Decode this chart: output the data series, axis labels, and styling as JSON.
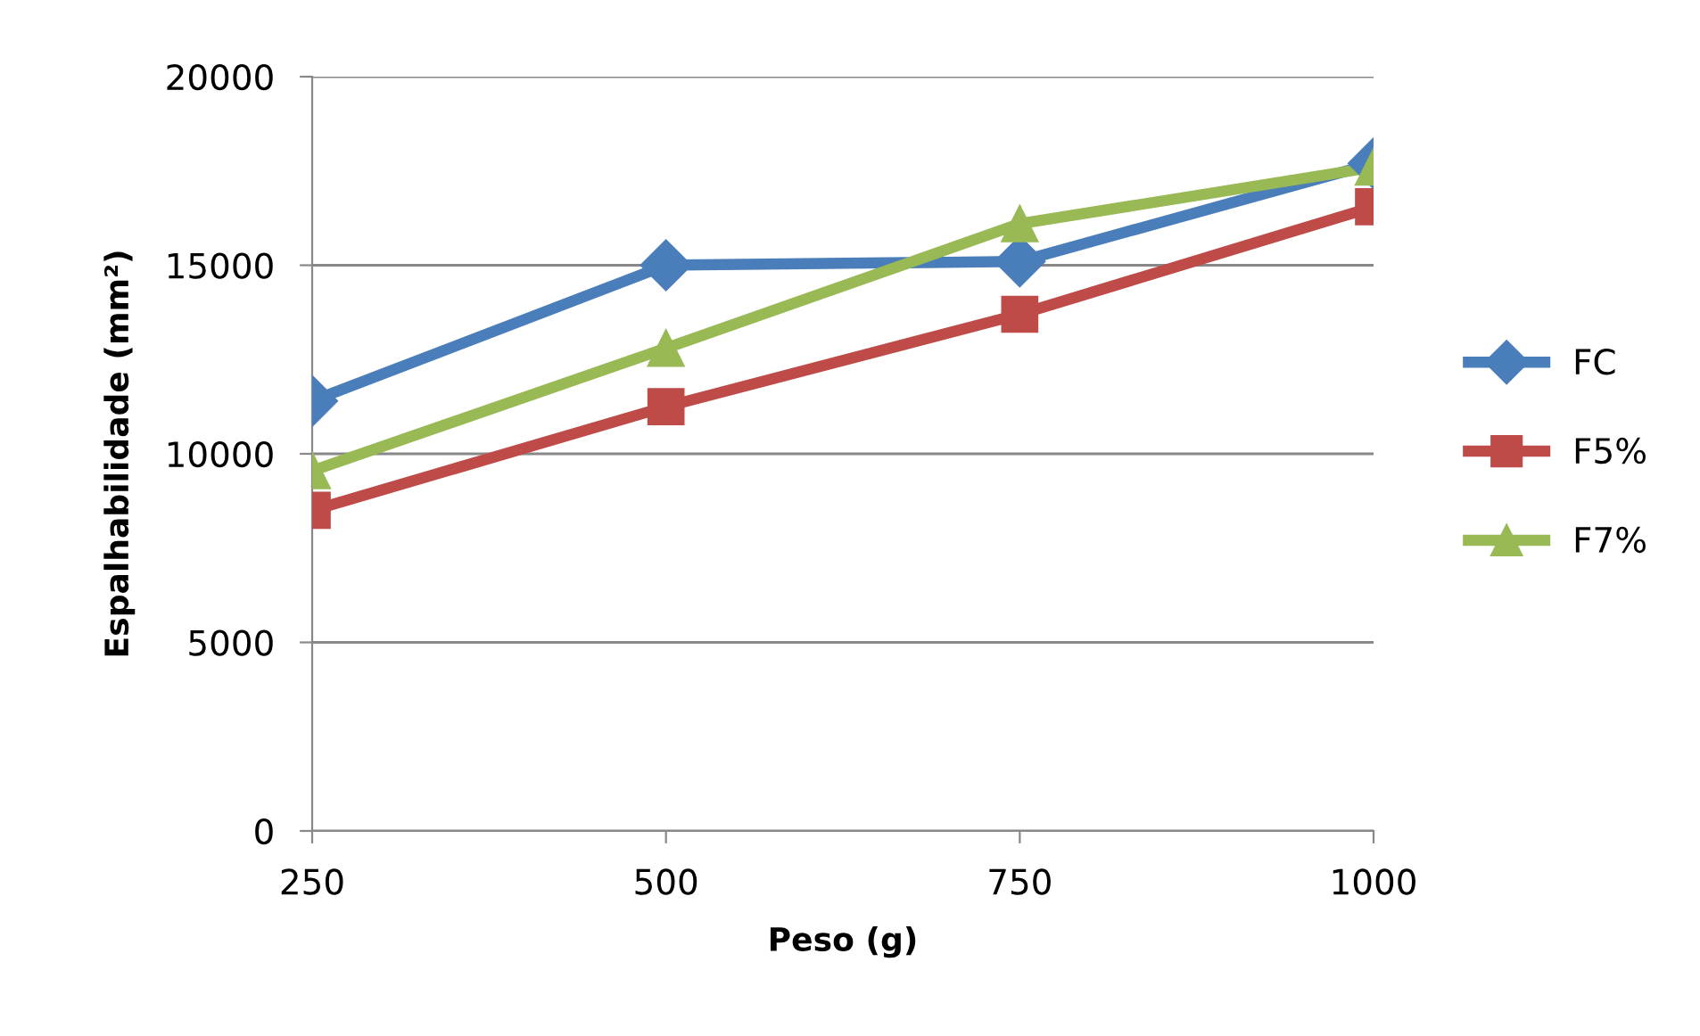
{
  "chart_data": {
    "type": "line",
    "xlabel": "Peso (g)",
    "ylabel": "Espalhabilidade (mm²)",
    "categories": [
      "250",
      "500",
      "750",
      "1000"
    ],
    "series": [
      {
        "name": "FC",
        "color": "#4a7ebb",
        "marker": "diamond",
        "values": [
          11400,
          15000,
          15100,
          17700
        ]
      },
      {
        "name": "F5%",
        "color": "#be4b48",
        "marker": "square",
        "values": [
          8500,
          11250,
          13700,
          16550
        ]
      },
      {
        "name": "F7%",
        "color": "#98b954",
        "marker": "triangle",
        "values": [
          9550,
          12800,
          16100,
          17600
        ]
      }
    ],
    "ylim": [
      0,
      20000
    ],
    "yticks": [
      0,
      5000,
      10000,
      15000,
      20000
    ],
    "grid": "y",
    "legend": "right",
    "line_style": "solid"
  }
}
